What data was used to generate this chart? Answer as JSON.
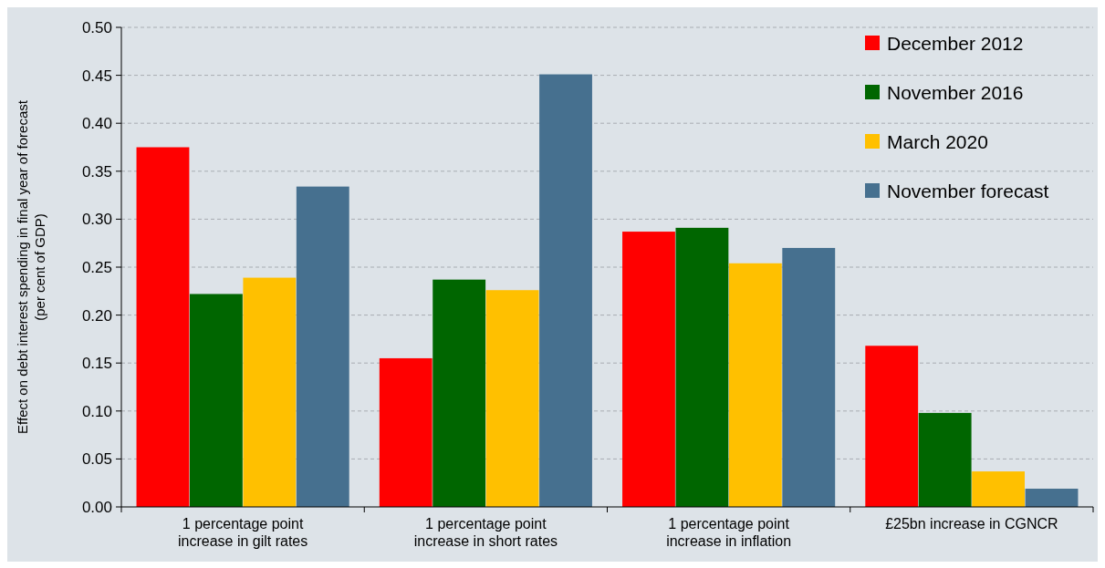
{
  "chart_data": {
    "type": "bar",
    "ylabel": "Effect on debt interest spending in final year of forecast\n(per cent of GDP)",
    "categories": [
      "1 percentage point increase in gilt rates",
      "1 percentage point increase in short rates",
      "1 percentage point increase in inflation",
      "£25bn increase in CGNCR"
    ],
    "series": [
      {
        "name": "December 2012",
        "color": "#ff0000",
        "values": [
          0.375,
          0.155,
          0.287,
          0.168
        ]
      },
      {
        "name": "November 2016",
        "color": "#006600",
        "values": [
          0.222,
          0.237,
          0.291,
          0.098
        ]
      },
      {
        "name": "March 2020",
        "color": "#ffc000",
        "values": [
          0.239,
          0.226,
          0.254,
          0.037
        ]
      },
      {
        "name": "November forecast",
        "color": "#46708f",
        "values": [
          0.334,
          0.451,
          0.27,
          0.019
        ]
      }
    ],
    "ylim": [
      0,
      0.5
    ],
    "yticks": [
      {
        "value": 0,
        "label": "0.00"
      },
      {
        "value": 0.05,
        "label": "0.05"
      },
      {
        "value": 0.1,
        "label": "0.10"
      },
      {
        "value": 0.15,
        "label": "0.15"
      },
      {
        "value": 0.2,
        "label": "0.20"
      },
      {
        "value": 0.25,
        "label": "0.25"
      },
      {
        "value": 0.3,
        "label": "0.30"
      },
      {
        "value": 0.35,
        "label": "0.35"
      },
      {
        "value": 0.4,
        "label": "0.40"
      },
      {
        "value": 0.45,
        "label": "0.45"
      },
      {
        "value": 0.5,
        "label": "0.50"
      }
    ],
    "grid": "y",
    "legend": "top right"
  }
}
